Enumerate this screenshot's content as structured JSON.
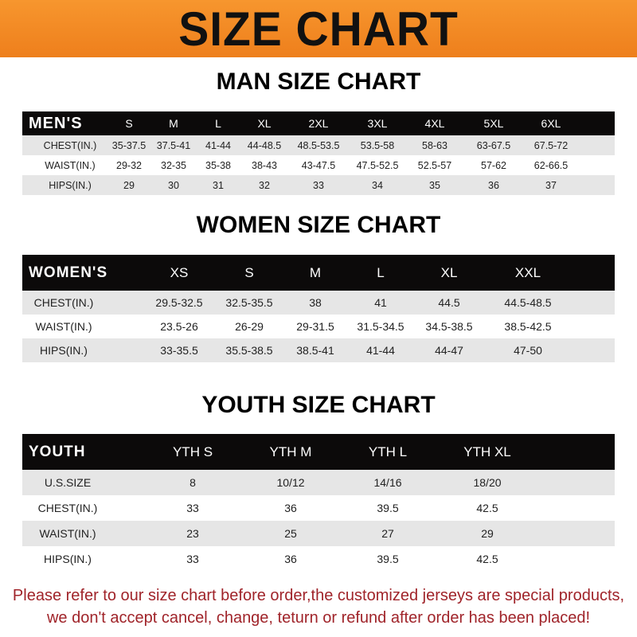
{
  "title": "SIZE CHART",
  "colors": {
    "banner": "#f28c28",
    "header_row": "#0c0a0a",
    "note_text": "#a0242a"
  },
  "men": {
    "title": "MAN SIZE CHART",
    "header": [
      "MEN'S",
      "S",
      "M",
      "L",
      "XL",
      "2XL",
      "3XL",
      "4XL",
      "5XL",
      "6XL"
    ],
    "rows": [
      [
        "CHEST(IN.)",
        "35-37.5",
        "37.5-41",
        "41-44",
        "44-48.5",
        "48.5-53.5",
        "53.5-58",
        "58-63",
        "63-67.5",
        "67.5-72"
      ],
      [
        "WAIST(IN.)",
        "29-32",
        "32-35",
        "35-38",
        "38-43",
        "43-47.5",
        "47.5-52.5",
        "52.5-57",
        "57-62",
        "62-66.5"
      ],
      [
        "HIPS(IN.)",
        "29",
        "30",
        "31",
        "32",
        "33",
        "34",
        "35",
        "36",
        "37"
      ]
    ]
  },
  "women": {
    "title": "WOMEN SIZE CHART",
    "header": [
      "WOMEN'S",
      "XS",
      "S",
      "M",
      "L",
      "XL",
      "XXL"
    ],
    "rows": [
      [
        "CHEST(IN.)",
        "29.5-32.5",
        "32.5-35.5",
        "38",
        "41",
        "44.5",
        "44.5-48.5"
      ],
      [
        "WAIST(IN.)",
        "23.5-26",
        "26-29",
        "29-31.5",
        "31.5-34.5",
        "34.5-38.5",
        "38.5-42.5"
      ],
      [
        "HIPS(IN.)",
        "33-35.5",
        "35.5-38.5",
        "38.5-41",
        "41-44",
        "44-47",
        "47-50"
      ]
    ]
  },
  "youth": {
    "title": "YOUTH SIZE CHART",
    "header": [
      "YOUTH",
      "YTH S",
      "YTH M",
      "YTH L",
      "YTH XL"
    ],
    "rows": [
      [
        "U.S.SIZE",
        "8",
        "10/12",
        "14/16",
        "18/20"
      ],
      [
        "CHEST(IN.)",
        "33",
        "36",
        "39.5",
        "42.5"
      ],
      [
        "WAIST(IN.)",
        "23",
        "25",
        "27",
        "29"
      ],
      [
        "HIPS(IN.)",
        "33",
        "36",
        "39.5",
        "42.5"
      ]
    ]
  },
  "note": {
    "line1": "Please refer to our size chart before order,the customized jerseys are special products,",
    "line2": "we don't accept cancel, change, teturn or refund after order has been placed!"
  }
}
